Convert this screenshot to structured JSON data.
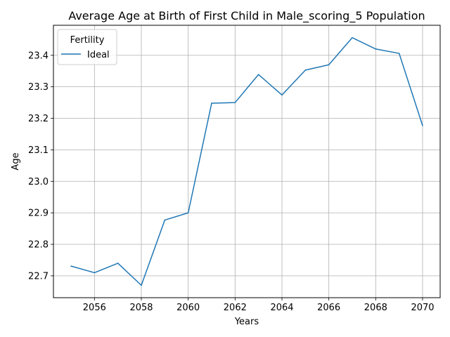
{
  "chart_data": {
    "type": "line",
    "title": "Average Age at Birth of First Child in Male_scoring_5 Population",
    "xlabel": "Years",
    "ylabel": "Age",
    "x": [
      2055,
      2056,
      2057,
      2058,
      2059,
      2060,
      2061,
      2062,
      2063,
      2064,
      2065,
      2066,
      2067,
      2068,
      2069,
      2070
    ],
    "series": [
      {
        "name": "Ideal",
        "color": "#1f77b4",
        "values": [
          22.731,
          22.71,
          22.74,
          22.67,
          22.877,
          22.9,
          23.248,
          23.25,
          23.339,
          23.274,
          23.353,
          23.37,
          23.456,
          23.42,
          23.406,
          23.177
        ]
      }
    ],
    "xlim": [
      2054.25,
      2070.75
    ],
    "ylim": [
      22.6307,
      23.4953
    ],
    "xticks": [
      "2056",
      "2058",
      "2060",
      "2062",
      "2064",
      "2066",
      "2068",
      "2070"
    ],
    "yticks": [
      "22.7",
      "22.8",
      "22.9",
      "23.0",
      "23.1",
      "23.2",
      "23.3",
      "23.4"
    ],
    "grid": true,
    "legend": {
      "title": "Fertility",
      "placement": "upper-left"
    }
  }
}
